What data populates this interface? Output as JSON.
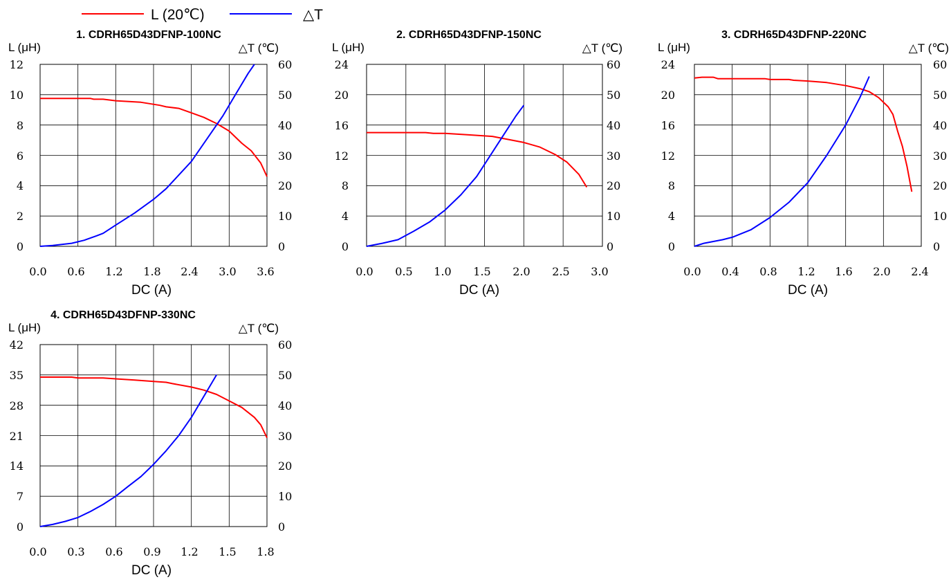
{
  "legend": {
    "series": [
      {
        "label": "L (20℃)",
        "color": "#ff0000"
      },
      {
        "label": "△T",
        "color": "#0000ff"
      }
    ]
  },
  "axis_text": {
    "left_unit": "L (μH)",
    "right_unit": "△T (℃)",
    "x_label": "DC (A)"
  },
  "chart_data": [
    {
      "type": "line",
      "title": "1. CDRH65D43DFNP-100NC",
      "xlabel": "DC (A)",
      "ylabel": "L (μH)",
      "y2label": "△T (℃)",
      "xlim": [
        0,
        3.6
      ],
      "ylim": [
        0,
        12
      ],
      "y2lim": [
        0,
        60
      ],
      "x_ticks": [
        "0.0",
        "0.6",
        "1.2",
        "1.8",
        "2.4",
        "3.0",
        "3.6"
      ],
      "y_ticks": [
        "0",
        "2",
        "4",
        "6",
        "8",
        "10",
        "12"
      ],
      "y2_ticks": [
        "0",
        "10",
        "20",
        "30",
        "40",
        "50",
        "60"
      ],
      "grid": true,
      "series": [
        {
          "name": "L (20℃)",
          "axis": "left",
          "color": "#ff0000",
          "points": [
            [
              0,
              9.75
            ],
            [
              0.3,
              9.75
            ],
            [
              0.6,
              9.75
            ],
            [
              0.8,
              9.75
            ],
            [
              0.85,
              9.7
            ],
            [
              1.0,
              9.7
            ],
            [
              1.2,
              9.6
            ],
            [
              1.6,
              9.5
            ],
            [
              1.9,
              9.3
            ],
            [
              2.0,
              9.2
            ],
            [
              2.2,
              9.1
            ],
            [
              2.4,
              8.8
            ],
            [
              2.6,
              8.5
            ],
            [
              2.8,
              8.1
            ],
            [
              3.0,
              7.6
            ],
            [
              3.2,
              6.8
            ],
            [
              3.35,
              6.3
            ],
            [
              3.5,
              5.5
            ],
            [
              3.6,
              4.6
            ]
          ]
        },
        {
          "name": "△T",
          "axis": "right",
          "color": "#0000ff",
          "points": [
            [
              0,
              0
            ],
            [
              0.2,
              0.3
            ],
            [
              0.5,
              1
            ],
            [
              0.7,
              2
            ],
            [
              0.9,
              3.5
            ],
            [
              1.0,
              4.3
            ],
            [
              1.2,
              7
            ],
            [
              1.5,
              11
            ],
            [
              1.8,
              15.5
            ],
            [
              2.0,
              19
            ],
            [
              2.4,
              28
            ],
            [
              2.7,
              37
            ],
            [
              2.9,
              43
            ],
            [
              3.1,
              50
            ],
            [
              3.3,
              57
            ],
            [
              3.4,
              60
            ]
          ]
        }
      ]
    },
    {
      "type": "line",
      "title": "2. CDRH65D43DFNP-150NC",
      "xlabel": "DC (A)",
      "ylabel": "L (μH)",
      "y2label": "△T (℃)",
      "xlim": [
        0,
        3.0
      ],
      "ylim": [
        0,
        24
      ],
      "y2lim": [
        0,
        60
      ],
      "x_ticks": [
        "0.0",
        "0.5",
        "1.0",
        "1.5",
        "2.0",
        "2.5",
        "3.0"
      ],
      "y_ticks": [
        "0",
        "4",
        "8",
        "12",
        "16",
        "20",
        "24"
      ],
      "y2_ticks": [
        "0",
        "10",
        "20",
        "30",
        "40",
        "50",
        "60"
      ],
      "grid": true,
      "series": [
        {
          "name": "L (20℃)",
          "axis": "left",
          "color": "#ff0000",
          "points": [
            [
              0,
              15
            ],
            [
              0.5,
              15
            ],
            [
              0.75,
              15
            ],
            [
              0.85,
              14.9
            ],
            [
              1.0,
              14.9
            ],
            [
              1.3,
              14.7
            ],
            [
              1.6,
              14.5
            ],
            [
              1.8,
              14.1
            ],
            [
              2.0,
              13.7
            ],
            [
              2.2,
              13.1
            ],
            [
              2.4,
              12.1
            ],
            [
              2.55,
              11.1
            ],
            [
              2.7,
              9.5
            ],
            [
              2.8,
              7.8
            ]
          ]
        },
        {
          "name": "△T",
          "axis": "right",
          "color": "#0000ff",
          "points": [
            [
              0,
              0
            ],
            [
              0.2,
              1
            ],
            [
              0.4,
              2.2
            ],
            [
              0.6,
              5
            ],
            [
              0.8,
              8
            ],
            [
              1.0,
              12
            ],
            [
              1.2,
              17
            ],
            [
              1.4,
              23
            ],
            [
              1.6,
              31
            ],
            [
              1.75,
              37
            ],
            [
              1.9,
              43
            ],
            [
              2.0,
              46.5
            ]
          ]
        }
      ]
    },
    {
      "type": "line",
      "title": "3. CDRH65D43DFNP-220NC",
      "xlabel": "DC (A)",
      "ylabel": "L (μH)",
      "y2label": "△T (℃)",
      "xlim": [
        0,
        2.4
      ],
      "ylim": [
        0,
        24
      ],
      "y2lim": [
        0,
        60
      ],
      "x_ticks": [
        "0.0",
        "0.4",
        "0.8",
        "1.2",
        "1.6",
        "2.0",
        "2.4"
      ],
      "y_ticks": [
        "0",
        "4",
        "8",
        "12",
        "16",
        "20",
        "24"
      ],
      "y2_ticks": [
        "0",
        "10",
        "20",
        "30",
        "40",
        "50",
        "60"
      ],
      "grid": true,
      "series": [
        {
          "name": "L (20℃)",
          "axis": "left",
          "color": "#ff0000",
          "points": [
            [
              0,
              22.2
            ],
            [
              0.08,
              22.3
            ],
            [
              0.2,
              22.3
            ],
            [
              0.25,
              22.1
            ],
            [
              0.5,
              22.1
            ],
            [
              0.75,
              22.1
            ],
            [
              0.8,
              22
            ],
            [
              1.0,
              22
            ],
            [
              1.05,
              21.9
            ],
            [
              1.2,
              21.8
            ],
            [
              1.4,
              21.6
            ],
            [
              1.6,
              21.2
            ],
            [
              1.75,
              20.8
            ],
            [
              1.85,
              20.4
            ],
            [
              1.95,
              19.6
            ],
            [
              2.05,
              18.4
            ],
            [
              2.1,
              17.4
            ],
            [
              2.15,
              15.2
            ],
            [
              2.2,
              13.2
            ],
            [
              2.25,
              10.5
            ],
            [
              2.3,
              7.2
            ]
          ]
        },
        {
          "name": "△T",
          "axis": "right",
          "color": "#0000ff",
          "points": [
            [
              0,
              0
            ],
            [
              0.1,
              1
            ],
            [
              0.3,
              2.2
            ],
            [
              0.4,
              3
            ],
            [
              0.6,
              5.5
            ],
            [
              0.8,
              9.5
            ],
            [
              1.0,
              14.5
            ],
            [
              1.2,
              21
            ],
            [
              1.4,
              30
            ],
            [
              1.6,
              40
            ],
            [
              1.75,
              49
            ],
            [
              1.85,
              56
            ]
          ]
        }
      ]
    },
    {
      "type": "line",
      "title": "4. CDRH65D43DFNP-330NC",
      "xlabel": "DC (A)",
      "ylabel": "L (μH)",
      "y2label": "△T (℃)",
      "xlim": [
        0,
        1.8
      ],
      "ylim": [
        0,
        42
      ],
      "y2lim": [
        0,
        60
      ],
      "x_ticks": [
        "0.0",
        "0.3",
        "0.6",
        "0.9",
        "1.2",
        "1.5",
        "1.8"
      ],
      "y_ticks": [
        "0",
        "7",
        "14",
        "21",
        "28",
        "35",
        "42"
      ],
      "y2_ticks": [
        "0",
        "10",
        "20",
        "30",
        "40",
        "50",
        "60"
      ],
      "grid": true,
      "series": [
        {
          "name": "L (20℃)",
          "axis": "left",
          "color": "#ff0000",
          "points": [
            [
              0,
              34.5
            ],
            [
              0.1,
              34.5
            ],
            [
              0.25,
              34.5
            ],
            [
              0.3,
              34.3
            ],
            [
              0.5,
              34.3
            ],
            [
              0.6,
              34.1
            ],
            [
              0.75,
              33.8
            ],
            [
              0.9,
              33.5
            ],
            [
              1.0,
              33.3
            ],
            [
              1.05,
              33
            ],
            [
              1.2,
              32.2
            ],
            [
              1.3,
              31.5
            ],
            [
              1.4,
              30.5
            ],
            [
              1.5,
              29
            ],
            [
              1.6,
              27.5
            ],
            [
              1.7,
              25.2
            ],
            [
              1.75,
              23.5
            ],
            [
              1.8,
              20.5
            ]
          ]
        },
        {
          "name": "△T",
          "axis": "right",
          "color": "#0000ff",
          "points": [
            [
              0,
              0
            ],
            [
              0.1,
              0.7
            ],
            [
              0.2,
              1.7
            ],
            [
              0.3,
              3
            ],
            [
              0.4,
              5
            ],
            [
              0.5,
              7.3
            ],
            [
              0.6,
              10
            ],
            [
              0.7,
              13.3
            ],
            [
              0.8,
              16.5
            ],
            [
              0.9,
              20.5
            ],
            [
              1.0,
              25
            ],
            [
              1.1,
              30
            ],
            [
              1.2,
              36
            ],
            [
              1.3,
              43
            ],
            [
              1.4,
              50
            ]
          ]
        }
      ]
    }
  ]
}
